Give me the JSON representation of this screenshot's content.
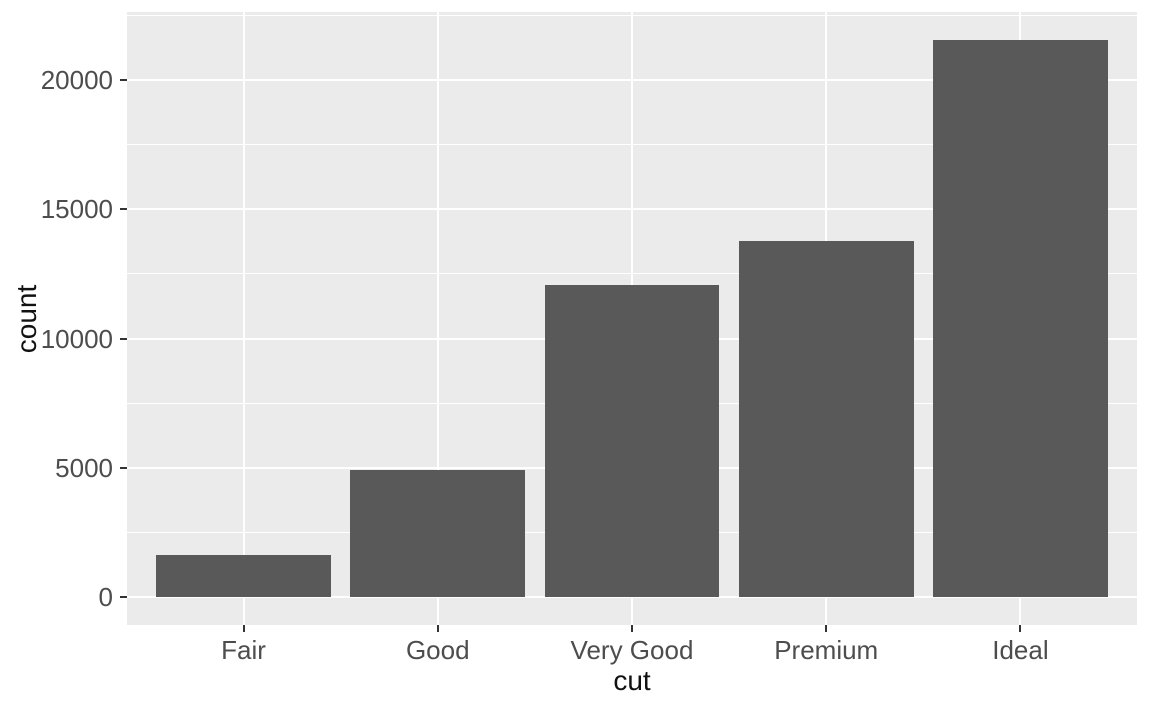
{
  "chart_data": {
    "type": "bar",
    "title": "",
    "categories": [
      "Fair",
      "Good",
      "Very Good",
      "Premium",
      "Ideal"
    ],
    "values": [
      1610,
      4906,
      12082,
      13791,
      21551
    ],
    "xlabel": "cut",
    "ylabel": "count",
    "yticks": [
      0,
      5000,
      10000,
      15000,
      20000
    ],
    "ytick_labels": [
      "0",
      "5000",
      "10000",
      "15000",
      "20000"
    ],
    "ylim": [
      -1078,
      22629
    ],
    "grid": "major-and-minor",
    "legend_position": "none",
    "style": "ggplot2-theme-grey",
    "colors": {
      "bar_fill": "#595959",
      "panel_background": "#EBEBEB",
      "gridline": "#FFFFFF",
      "axis_text": "#4D4D4D",
      "axis_title": "#111111",
      "tick_mark": "#333333",
      "figure_background": "#FFFFFF"
    }
  }
}
